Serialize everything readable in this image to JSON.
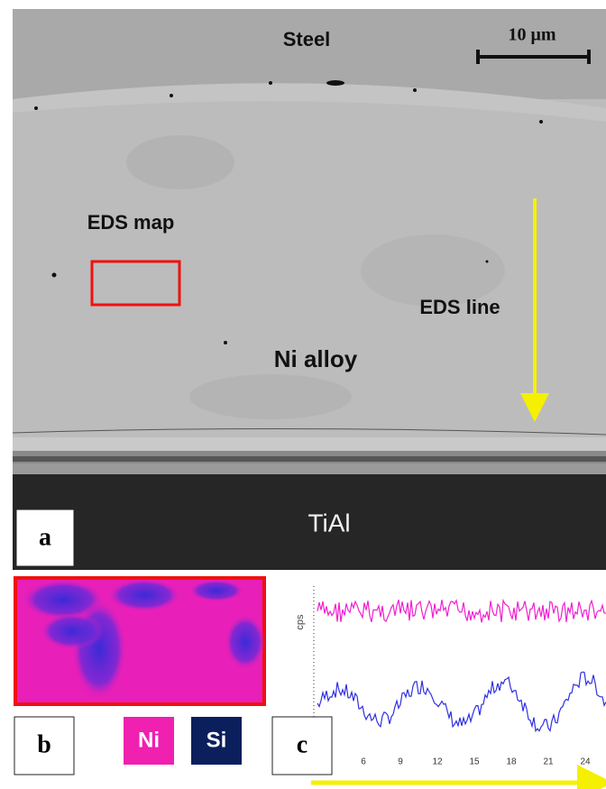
{
  "panel_a": {
    "label": "a",
    "steel": "Steel",
    "scale_bar": "10 μm",
    "eds_map": "EDS map",
    "eds_line": "EDS line",
    "ni_alloy": "Ni alloy",
    "tial": "TiAl"
  },
  "panel_b": {
    "label": "b",
    "legend": [
      "Ni",
      "Si"
    ]
  },
  "panel_c": {
    "label": "c",
    "y_label": "cps",
    "x_ticks": [
      "6",
      "9",
      "12",
      "15",
      "18",
      "21",
      "24"
    ]
  }
}
